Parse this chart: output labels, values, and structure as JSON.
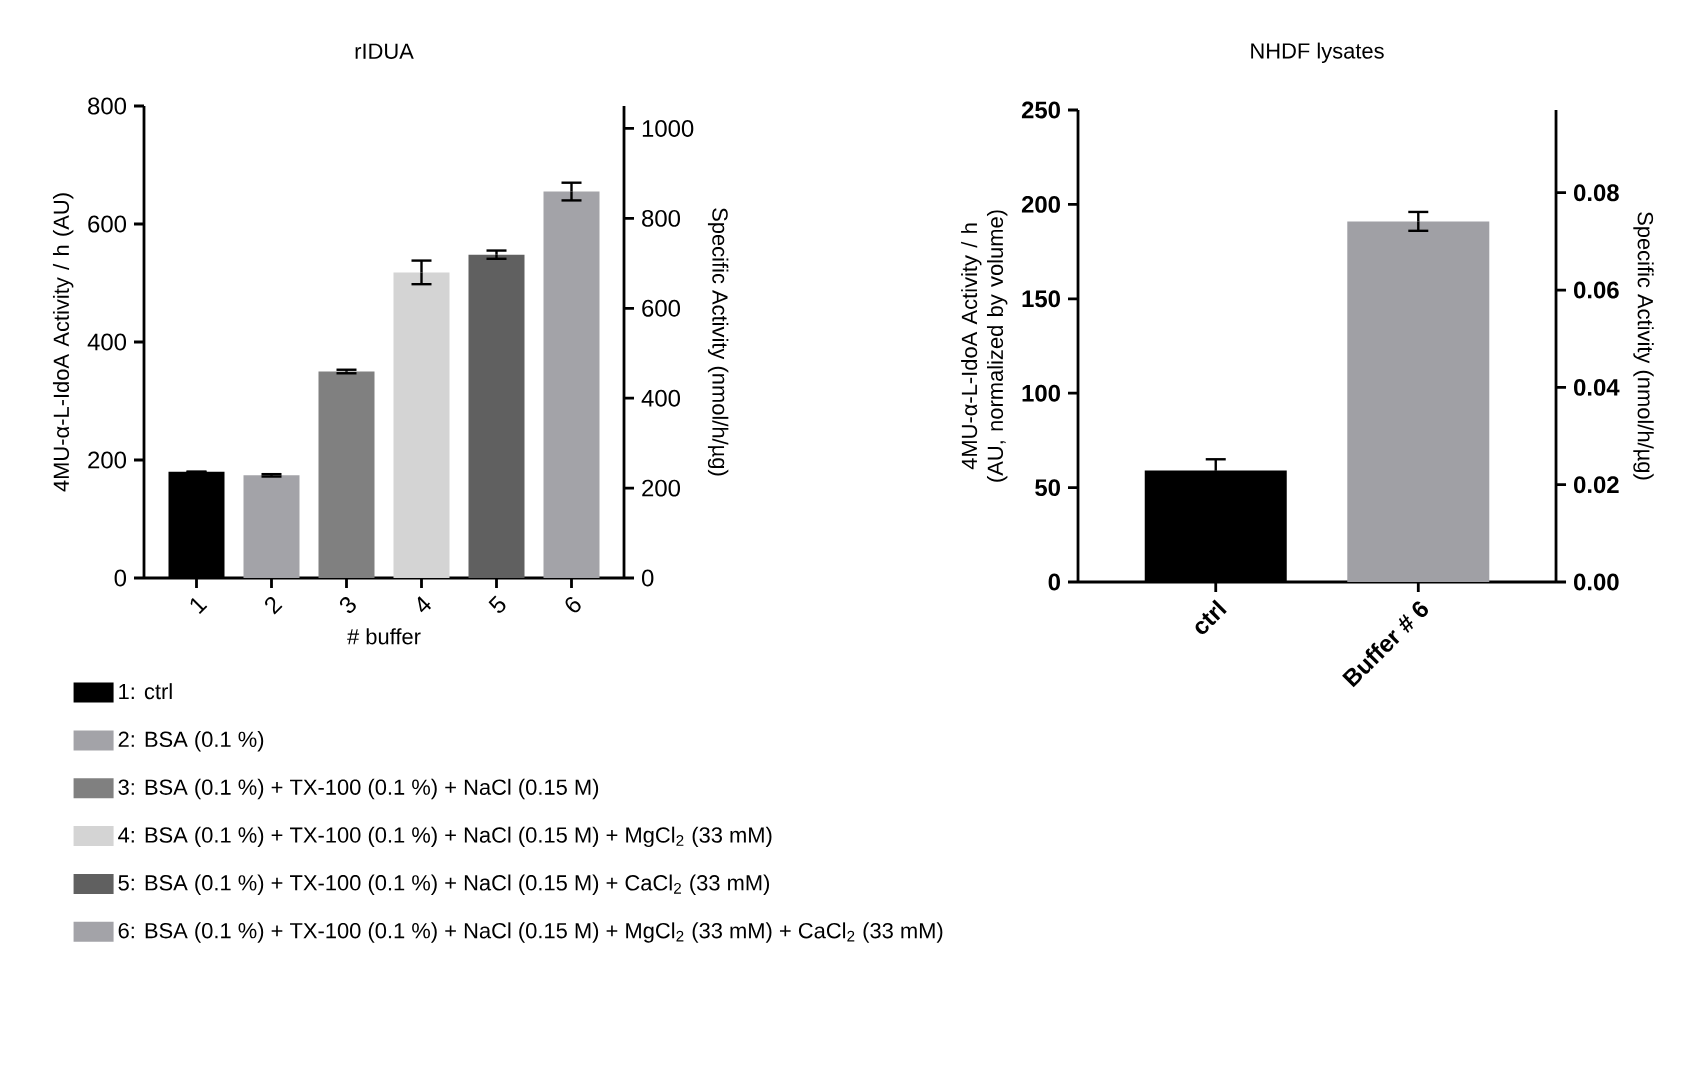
{
  "chart_data": [
    {
      "type": "bar",
      "title": "rIDUA",
      "xlabel": "# buffer",
      "ylabel": "4MU-α-L-IdoA Activity / h (AU)",
      "y2label": "Specific Activity (nmol/h/µg)",
      "categories": [
        "1",
        "2",
        "3",
        "4",
        "5",
        "6"
      ],
      "series": [
        {
          "name": "1: ctrl",
          "color": "#000000",
          "values": [
            180,
            null,
            null,
            null,
            null,
            null
          ],
          "errors": [
            null,
            null,
            null,
            null,
            null,
            null
          ]
        },
        {
          "name": "2: BSA (0.1 %)",
          "color": "#a3a3a8",
          "values": [
            null,
            174,
            null,
            null,
            null,
            null
          ],
          "errors": [
            null,
            2,
            null,
            null,
            null,
            null
          ]
        },
        {
          "name": "3: BSA (0.1 %) + TX-100 (0.1 %) + NaCl (0.15 M)",
          "color": "#808080",
          "values": [
            null,
            null,
            350,
            null,
            null,
            null
          ],
          "errors": [
            null,
            null,
            3,
            null,
            null,
            null
          ]
        },
        {
          "name": "4: BSA (0.1 %) + TX-100 (0.1 %) + NaCl (0.15 M) + MgCl$_{2}$ (33 mM)",
          "color": "#d4d4d4",
          "values": [
            null,
            null,
            null,
            518,
            null,
            null
          ],
          "errors": [
            null,
            null,
            null,
            20,
            null,
            null
          ]
        },
        {
          "name": "5: BSA (0.1 %) + TX-100 (0.1 %) + NaCl (0.15 M) + CaCl$_{2}$ (33 mM)",
          "color": "#606060",
          "values": [
            null,
            null,
            null,
            null,
            548,
            null
          ],
          "errors": [
            null,
            null,
            null,
            null,
            7,
            null
          ]
        },
        {
          "name": "6: BSA (0.1 %) + TX-100 (0.1 %) + NaCl (0.15 M) + MgCl$_{2}$ (33 mM) + CaCl$_{2}$ (33 mM)",
          "color": "#a3a3a8",
          "values": [
            null,
            null,
            null,
            null,
            null,
            655
          ],
          "errors": [
            null,
            null,
            null,
            null,
            null,
            15
          ]
        }
      ],
      "ylim": [
        0,
        800
      ],
      "yticks": [
        0,
        200,
        400,
        600,
        800
      ],
      "y2lim": [
        0,
        1050
      ],
      "y2ticks": [
        0,
        200,
        400,
        600,
        800,
        1000
      ],
      "legend": "bottom"
    },
    {
      "type": "bar",
      "title": "NHDF lysates",
      "ylabel": "4MU-α-L-IdoA Activity / h (AU, normalized by volume)",
      "y2label": "Specific Activity (nmol/h/µg)",
      "categories": [
        "ctrl",
        "Buffer # 6"
      ],
      "values": [
        59,
        191
      ],
      "errors": [
        6,
        5
      ],
      "colors": [
        "#000000",
        "#a0a0a5"
      ],
      "ylim": [
        0,
        250
      ],
      "yticks": [
        0,
        50,
        100,
        150,
        200,
        250
      ],
      "y2lim": [
        0,
        0.097
      ],
      "y2ticks": [
        {
          "value": 0,
          "label": "0.00"
        },
        {
          "value": 0.02,
          "label": "0.02"
        },
        {
          "value": 0.04,
          "label": "0.04"
        },
        {
          "value": 0.06,
          "label": "0.06"
        },
        {
          "value": 0.08,
          "label": "0.08"
        }
      ]
    }
  ]
}
